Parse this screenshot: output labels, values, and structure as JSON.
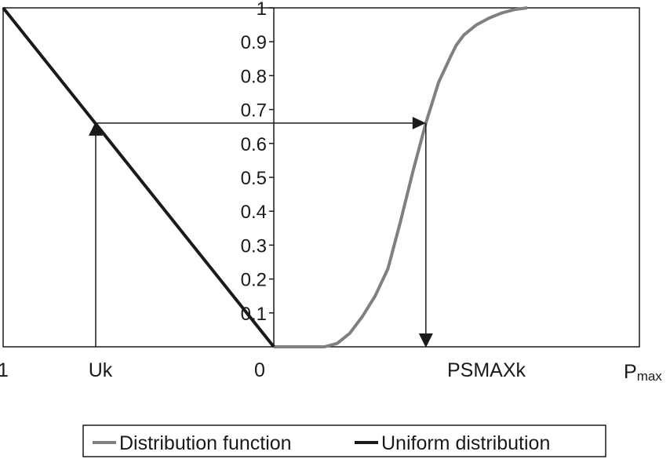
{
  "chart_data": {
    "type": "line",
    "y_ticks": [
      "0.1",
      "0.2",
      "0.3",
      "0.4",
      "0.5",
      "0.6",
      "0.7",
      "0.8",
      "0.9",
      "1"
    ],
    "x_labels": {
      "left_end": "1",
      "uk": "Uk",
      "zero": "0",
      "psmaxk": "PSMAXk",
      "pmax_main": "P",
      "pmax_sub": "max"
    },
    "ylim": [
      0,
      1
    ],
    "uk_value": 0.66,
    "series": [
      {
        "name": "Distribution function",
        "color": "#808080",
        "x": [
          0.0,
          0.15,
          0.2,
          0.25,
          0.3,
          0.35,
          0.4,
          0.45,
          0.5,
          0.55,
          0.6,
          0.65,
          0.7,
          0.72,
          0.75,
          0.8,
          0.85,
          0.9,
          0.95,
          1.0
        ],
        "y": [
          0.0,
          0.0,
          0.0,
          0.01,
          0.04,
          0.09,
          0.15,
          0.23,
          0.37,
          0.52,
          0.66,
          0.78,
          0.86,
          0.89,
          0.92,
          0.95,
          0.97,
          0.985,
          0.995,
          1.0
        ]
      },
      {
        "name": "Uniform distribution",
        "color": "#1a1a1a",
        "x": [
          1,
          0
        ],
        "y": [
          1,
          0
        ]
      }
    ],
    "legend_position": "bottom-center"
  }
}
